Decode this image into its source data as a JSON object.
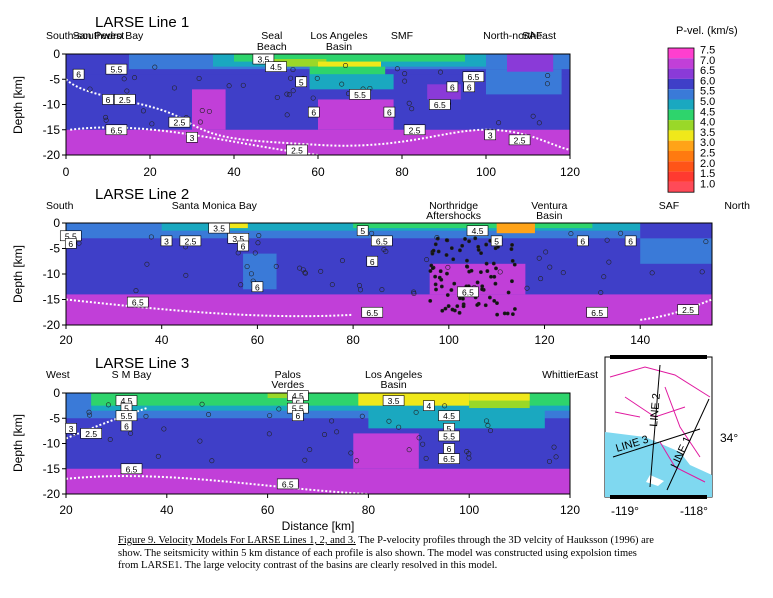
{
  "chart_data": [
    {
      "type": "heatmap",
      "title": "LARSE Line 1",
      "ylabel": "Depth [km]",
      "xlim": [
        0,
        120
      ],
      "ylim": [
        -20,
        0
      ],
      "x_ticks": [
        "0",
        "20",
        "40",
        "60",
        "80",
        "100",
        "120"
      ],
      "y_ticks": [
        "0",
        "-5",
        "-10",
        "-15",
        "-20"
      ],
      "annotations": [
        {
          "text": "South-southwest",
          "x": 0
        },
        {
          "text": "San Pedro Bay",
          "x": 10
        },
        {
          "text": "Seal",
          "x": 49
        },
        {
          "text": "Beach",
          "x": 49
        },
        {
          "text": "Los Angeles",
          "x": 65
        },
        {
          "text": "Basin",
          "x": 65
        },
        {
          "text": "SMF",
          "x": 80
        },
        {
          "text": "North-northeast",
          "x": 108
        },
        {
          "text": "SAF",
          "x": 111
        }
      ],
      "contour_labels": [
        {
          "text": "6",
          "x": 3,
          "y": -4
        },
        {
          "text": "5.5",
          "x": 12,
          "y": -3
        },
        {
          "text": "2.5",
          "x": 14,
          "y": -9
        },
        {
          "text": "6",
          "x": 10,
          "y": -9
        },
        {
          "text": "3.5",
          "x": 47,
          "y": -1
        },
        {
          "text": "4.5",
          "x": 50,
          "y": -2.5
        },
        {
          "text": "5",
          "x": 56,
          "y": -5.5
        },
        {
          "text": "5.5",
          "x": 70,
          "y": -8
        },
        {
          "text": "6",
          "x": 59,
          "y": -11.5
        },
        {
          "text": "6",
          "x": 77,
          "y": -11.5
        },
        {
          "text": "2.5",
          "x": 27,
          "y": -13.5
        },
        {
          "text": "6.5",
          "x": 12,
          "y": -15
        },
        {
          "text": "3",
          "x": 30,
          "y": -16.5
        },
        {
          "text": "2.5",
          "x": 55,
          "y": -19
        },
        {
          "text": "2.5",
          "x": 83,
          "y": -15
        },
        {
          "text": "6.5",
          "x": 89,
          "y": -10
        },
        {
          "text": "6",
          "x": 92,
          "y": -6.5
        },
        {
          "text": "6.5",
          "x": 97,
          "y": -4.5
        },
        {
          "text": "6",
          "x": 96,
          "y": -6.5
        },
        {
          "text": "3",
          "x": 101,
          "y": -16
        },
        {
          "text": "2.5",
          "x": 108,
          "y": -17
        }
      ]
    },
    {
      "type": "heatmap",
      "title": "LARSE Line 2",
      "ylabel": "Depth [km]",
      "xlim": [
        20,
        155
      ],
      "ylim": [
        -20,
        0
      ],
      "x_ticks": [
        "20",
        "40",
        "60",
        "80",
        "100",
        "120",
        "140"
      ],
      "y_ticks": [
        "0",
        "-5",
        "-10",
        "-15",
        "-20"
      ],
      "annotations": [
        {
          "text": "South",
          "x": 20
        },
        {
          "text": "Santa Monica Bay",
          "x": 51
        },
        {
          "text": "Northridge",
          "x": 101
        },
        {
          "text": "Aftershocks",
          "x": 101
        },
        {
          "text": "Ventura",
          "x": 121
        },
        {
          "text": "Basin",
          "x": 121
        },
        {
          "text": "SAF",
          "x": 146
        },
        {
          "text": "North",
          "x": 155
        }
      ],
      "contour_labels": [
        {
          "text": "5.5",
          "x": 21,
          "y": -2.5
        },
        {
          "text": "6",
          "x": 21,
          "y": -4
        },
        {
          "text": "3",
          "x": 41,
          "y": -3.5
        },
        {
          "text": "2.5",
          "x": 46,
          "y": -3.5
        },
        {
          "text": "3.5",
          "x": 52,
          "y": -1
        },
        {
          "text": "3.5",
          "x": 56,
          "y": -3
        },
        {
          "text": "6",
          "x": 57,
          "y": -4.5
        },
        {
          "text": "6",
          "x": 60,
          "y": -12.5
        },
        {
          "text": "5",
          "x": 82,
          "y": -1.5
        },
        {
          "text": "6.5",
          "x": 86,
          "y": -3.5
        },
        {
          "text": "6",
          "x": 84,
          "y": -7.5
        },
        {
          "text": "4.5",
          "x": 106,
          "y": -1.5
        },
        {
          "text": "5",
          "x": 110,
          "y": -3.5
        },
        {
          "text": "6",
          "x": 128,
          "y": -3.5
        },
        {
          "text": "6",
          "x": 138,
          "y": -3.5
        },
        {
          "text": "6.5",
          "x": 35,
          "y": -15.5
        },
        {
          "text": "6.5",
          "x": 104,
          "y": -13.5
        },
        {
          "text": "6.5",
          "x": 84,
          "y": -17.5
        },
        {
          "text": "6.5",
          "x": 131,
          "y": -17.5
        },
        {
          "text": "2.5",
          "x": 150,
          "y": -17
        }
      ]
    },
    {
      "type": "heatmap",
      "title": "LARSE Line 3",
      "ylabel": "Depth [km]",
      "xlabel": "Distance [km]",
      "xlim": [
        20,
        120
      ],
      "ylim": [
        -20,
        0
      ],
      "x_ticks": [
        "20",
        "40",
        "60",
        "80",
        "100",
        "120"
      ],
      "y_ticks": [
        "0",
        "-5",
        "-10",
        "-15",
        "-20"
      ],
      "annotations": [
        {
          "text": "West",
          "x": 20
        },
        {
          "text": "S M Bay",
          "x": 33
        },
        {
          "text": "Palos",
          "x": 64
        },
        {
          "text": "Verdes",
          "x": 64
        },
        {
          "text": "Los Angeles",
          "x": 85
        },
        {
          "text": "Basin",
          "x": 85
        },
        {
          "text": "Whittier",
          "x": 118
        },
        {
          "text": "East",
          "x": 125
        }
      ],
      "contour_labels": [
        {
          "text": "4.5",
          "x": 32,
          "y": -1.5
        },
        {
          "text": "5",
          "x": 32,
          "y": -3
        },
        {
          "text": "5.5",
          "x": 32,
          "y": -4.5
        },
        {
          "text": "6",
          "x": 32,
          "y": -6.5
        },
        {
          "text": "3",
          "x": 21,
          "y": -7
        },
        {
          "text": "2.5",
          "x": 25,
          "y": -8
        },
        {
          "text": "4.5",
          "x": 66,
          "y": -0.5
        },
        {
          "text": "5",
          "x": 66,
          "y": -2
        },
        {
          "text": "5.5",
          "x": 66,
          "y": -3
        },
        {
          "text": "6",
          "x": 66,
          "y": -4.5
        },
        {
          "text": "3.5",
          "x": 85,
          "y": -1.5
        },
        {
          "text": "4",
          "x": 92,
          "y": -2.5
        },
        {
          "text": "4.5",
          "x": 96,
          "y": -4.5
        },
        {
          "text": "5",
          "x": 96,
          "y": -7
        },
        {
          "text": "5.5",
          "x": 96,
          "y": -8.5
        },
        {
          "text": "6",
          "x": 96,
          "y": -11
        },
        {
          "text": "6.5",
          "x": 96,
          "y": -13
        },
        {
          "text": "6.5",
          "x": 33,
          "y": -15
        },
        {
          "text": "6.5",
          "x": 64,
          "y": -18
        }
      ]
    }
  ],
  "colorbar": {
    "title": "P-vel. (km/s)",
    "labels": [
      "7.5",
      "7.0",
      "6.5",
      "6.0",
      "5.5",
      "5.0",
      "4.5",
      "4.0",
      "3.5",
      "3.0",
      "2.5",
      "2.0",
      "1.5",
      "1.0"
    ],
    "colors": [
      "#ff3fcf",
      "#c13fd8",
      "#8a3ad8",
      "#3f3fc8",
      "#3a7ad8",
      "#1aa8c0",
      "#2ed46c",
      "#9ad828",
      "#f0e81a",
      "#ffa318",
      "#ff7a10",
      "#ff5418",
      "#ff3a30",
      "#ff4a58"
    ]
  },
  "map": {
    "x_ticks": [
      "-119°",
      "-118°"
    ],
    "y_tick": "34°",
    "line_labels": [
      "LINE 3",
      "LINE 2",
      "LINE 1"
    ],
    "ocean_color": "#7fd8f0",
    "fault_color": "#e01aa0"
  },
  "caption": {
    "heading": "Figure 9.  Velocity Models For LARSE Lines 1, 2, and 3.",
    "body": "  The P-velocity profiles through the 3D velcity of Hauksson (1996) are show.  The seitsmicity within 5 km distance of each profile is also shown.  The model was constructed using expolsion times from LARSE1.  The large velocity contrast of the basins are clearly resolved in this model."
  }
}
